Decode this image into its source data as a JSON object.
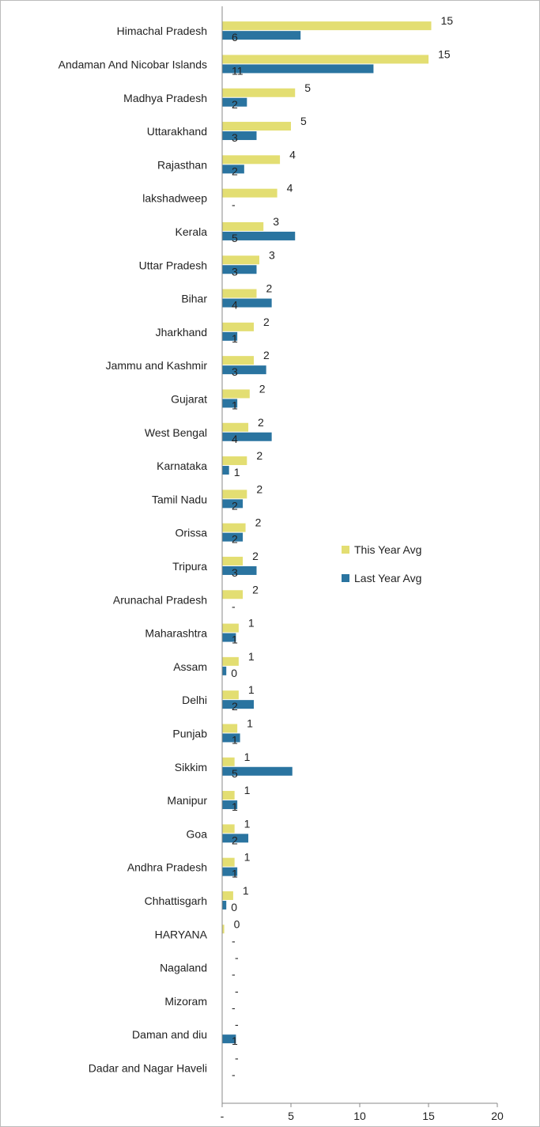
{
  "chart_data": {
    "type": "bar",
    "orientation": "horizontal",
    "categories": [
      "Himachal Pradesh",
      "Andaman And Nicobar Islands",
      "Madhya Pradesh",
      "Uttarakhand",
      "Rajasthan",
      "lakshadweep",
      "Kerala",
      "Uttar Pradesh",
      "Bihar",
      "Jharkhand",
      "Jammu and Kashmir",
      "Gujarat",
      "West Bengal",
      "Karnataka",
      "Tamil Nadu",
      "Orissa",
      "Tripura",
      "Arunachal Pradesh",
      "Maharashtra",
      "Assam",
      "Delhi",
      "Punjab",
      "Sikkim",
      "Manipur",
      "Goa",
      "Andhra Pradesh",
      "Chhattisgarh",
      "HARYANA",
      "Nagaland",
      "Mizoram",
      "Daman and diu",
      "Dadar and Nagar Haveli"
    ],
    "series": [
      {
        "name": "This Year Avg",
        "color": "#E3DE72",
        "values": [
          15.2,
          15.0,
          5.3,
          5.0,
          4.2,
          4.0,
          3.0,
          2.7,
          2.5,
          2.3,
          2.3,
          2.0,
          1.9,
          1.8,
          1.8,
          1.7,
          1.5,
          1.5,
          1.2,
          1.2,
          1.2,
          1.1,
          0.9,
          0.9,
          0.9,
          0.9,
          0.8,
          0.15,
          0,
          0,
          0,
          0
        ],
        "labels": [
          "15",
          "15",
          "5",
          "5",
          "4",
          "4",
          "3",
          "3",
          "2",
          "2",
          "2",
          "2",
          "2",
          "2",
          "2",
          "2",
          "2",
          "2",
          "1",
          "1",
          "1",
          "1",
          "1",
          "1",
          "1",
          "1",
          "1",
          "0",
          "-",
          "-",
          "-",
          "-"
        ]
      },
      {
        "name": "Last Year Avg",
        "color": "#2A74A0",
        "values": [
          5.7,
          11.0,
          1.8,
          2.5,
          1.6,
          0,
          5.3,
          2.5,
          3.6,
          1.1,
          3.2,
          1.1,
          3.6,
          0.5,
          1.5,
          1.5,
          2.5,
          0,
          1.0,
          0.3,
          2.3,
          1.3,
          5.1,
          1.1,
          1.9,
          1.1,
          0.3,
          0,
          0,
          0,
          1.0,
          0
        ],
        "labels": [
          "6",
          "11",
          "2",
          "3",
          "2",
          "-",
          "5",
          "3",
          "4",
          "1",
          "3",
          "1",
          "4",
          "1",
          "2",
          "2",
          "3",
          "-",
          "1",
          "0",
          "2",
          "1",
          "5",
          "1",
          "2",
          "1",
          "0",
          "-",
          "-",
          "-",
          "1",
          "-"
        ]
      }
    ],
    "x_ticks": [
      "-",
      "5",
      "10",
      "15",
      "20"
    ],
    "xlim": [
      0,
      20
    ],
    "legend_position": "right",
    "grid": false
  }
}
